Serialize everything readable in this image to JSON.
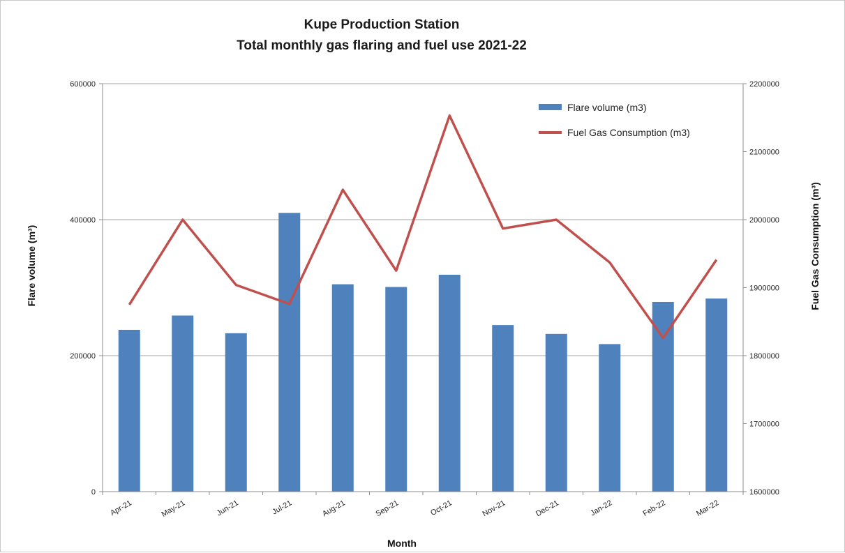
{
  "chart_data": {
    "type": "bar",
    "title": "Kupe Production Station",
    "subtitle": "Total monthly gas flaring and fuel use 2021-22",
    "xlabel": "Month",
    "ylabel_left": "Flare volume (m³)",
    "ylabel_right": "Fuel Gas Consumption (m³)",
    "categories": [
      "Apr-21",
      "May-21",
      "Jun-21",
      "Jul-21",
      "Aug-21",
      "Sep-21",
      "Oct-21",
      "Nov-21",
      "Dec-21",
      "Jan-22",
      "Feb-22",
      "Mar-22"
    ],
    "ylim_left": [
      0,
      600000
    ],
    "ylim_right": [
      1600000,
      2200000
    ],
    "yticks_left": [
      0,
      200000,
      400000,
      600000
    ],
    "yticks_right": [
      1600000,
      1700000,
      1800000,
      1900000,
      2000000,
      2100000,
      2200000
    ],
    "grid": true,
    "legend_position": "top-right",
    "series": [
      {
        "name": "Flare volume (m3)",
        "type": "bar",
        "axis": "left",
        "color": "#4f81bd",
        "values": [
          238000,
          259000,
          233000,
          410000,
          305000,
          301000,
          319000,
          245000,
          232000,
          217000,
          279000,
          284000
        ]
      },
      {
        "name": "Fuel Gas Consumption (m3)",
        "type": "line",
        "axis": "right",
        "color": "#c0504d",
        "values": [
          1875000,
          2000000,
          1904000,
          1876000,
          2044000,
          1925000,
          2153000,
          1987000,
          2000000,
          1937000,
          1826000,
          1941000
        ]
      }
    ]
  }
}
